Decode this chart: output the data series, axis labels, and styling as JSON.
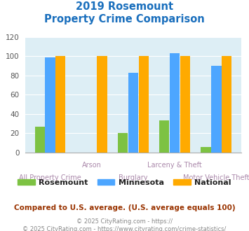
{
  "title_line1": "2019 Rosemount",
  "title_line2": "Property Crime Comparison",
  "categories": [
    "All Property Crime",
    "Arson",
    "Burglary",
    "Larceny & Theft",
    "Motor Vehicle Theft"
  ],
  "xtick_labels_top": [
    "",
    "Arson",
    "",
    "Larceny & Theft",
    ""
  ],
  "xtick_labels_bottom": [
    "All Property Crime",
    "",
    "Burglary",
    "",
    "Motor Vehicle Theft"
  ],
  "rosemount": [
    27,
    0,
    20,
    33,
    6
  ],
  "minnesota": [
    99,
    0,
    83,
    103,
    90
  ],
  "national": [
    100,
    100,
    100,
    100,
    100
  ],
  "rosemount_color": "#7dc243",
  "minnesota_color": "#4da6ff",
  "national_color": "#ffaa00",
  "ylim": [
    0,
    120
  ],
  "yticks": [
    0,
    20,
    40,
    60,
    80,
    100,
    120
  ],
  "bg_color": "#ddeef5",
  "title_color": "#1a6fbd",
  "xlabel_top_color": "#aa88aa",
  "xlabel_bottom_color": "#aa88aa",
  "legend_labels": [
    "Rosemount",
    "Minnesota",
    "National"
  ],
  "legend_text_color": "#222222",
  "footnote1": "Compared to U.S. average. (U.S. average equals 100)",
  "footnote2": "© 2025 CityRating.com - https://www.cityrating.com/crime-statistics/",
  "footnote1_color": "#993300",
  "footnote2_color": "#888888",
  "footnote2_link_color": "#4488cc"
}
